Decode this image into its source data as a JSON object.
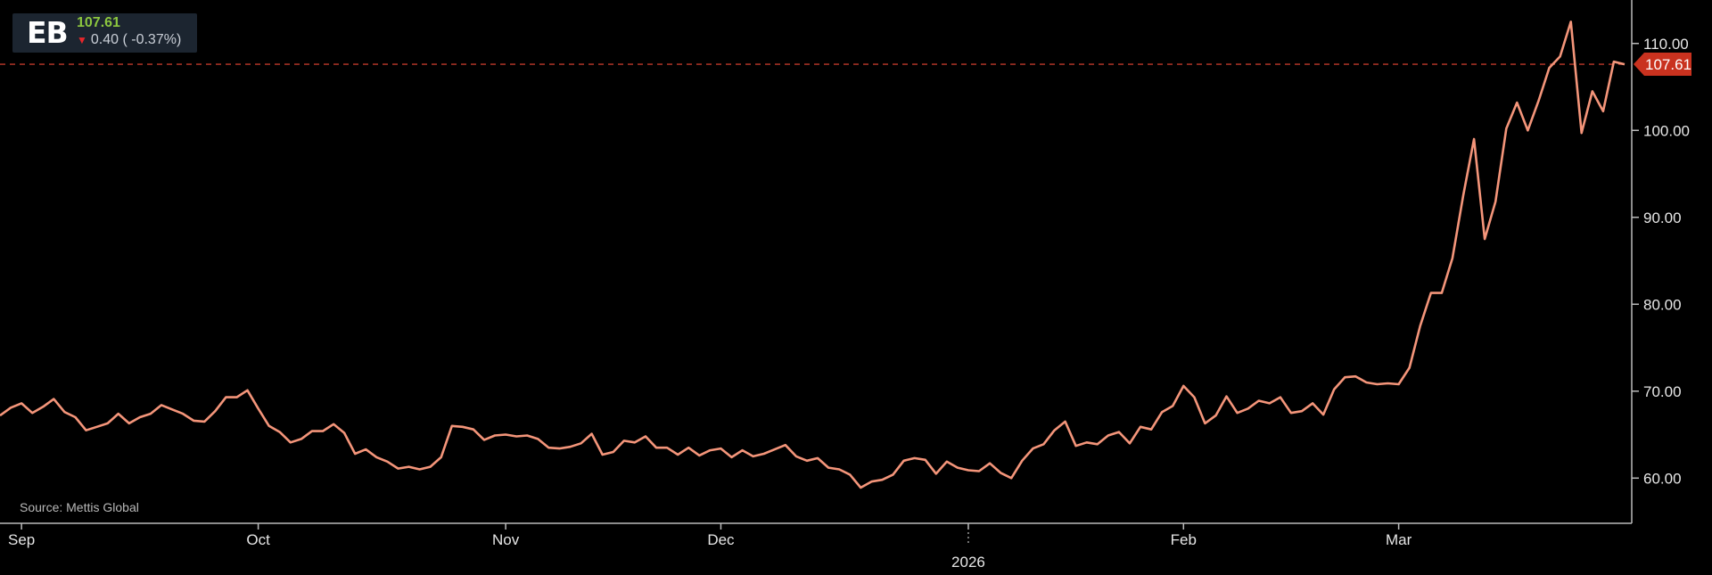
{
  "ticker": {
    "symbol": "EB",
    "price": "107.61",
    "change": "0.40",
    "change_pct": "( -0.37%)",
    "direction": "down",
    "arrow_icon": "down-arrow-icon"
  },
  "source": "Source: Mettis Global",
  "colors": {
    "background": "#000000",
    "line": "#f4957a",
    "last_price_line": "#c0392b",
    "last_price_tag": "#c9321f",
    "price_up": "#8cc63f",
    "price_down": "#e8262b"
  },
  "chart_data": {
    "type": "line",
    "title": "",
    "xlabel": "",
    "ylabel": "",
    "x_labels": [
      "Sep",
      "Oct",
      "Nov",
      "Dec",
      "2026",
      "Feb",
      "Mar"
    ],
    "x_label_index": [
      2,
      24,
      47,
      67,
      90,
      110,
      130
    ],
    "year_marker_label": "2026",
    "y_ticks": [
      "60.00",
      "70.00",
      "80.00",
      "90.00",
      "100.00",
      "110.00"
    ],
    "ylim": [
      54.8,
      115
    ],
    "y_axis_side": "right",
    "grid": false,
    "last_price": 107.61,
    "last_price_label": "107.61",
    "series": [
      {
        "values": [
          67.2,
          68.1,
          68.6,
          67.5,
          68.2,
          69.1,
          67.6,
          67.0,
          65.5,
          65.9,
          66.3,
          67.4,
          66.3,
          67.0,
          67.4,
          68.4,
          67.9,
          67.4,
          66.6,
          66.5,
          67.7,
          69.3,
          69.3,
          70.1,
          68.0,
          66.0,
          65.3,
          64.1,
          64.5,
          65.4,
          65.4,
          66.2,
          65.2,
          62.8,
          63.3,
          62.4,
          61.9,
          61.1,
          61.3,
          61.0,
          61.3,
          62.4,
          66.0,
          65.9,
          65.6,
          64.4,
          64.9,
          65.0,
          64.8,
          64.9,
          64.5,
          63.5,
          63.4,
          63.6,
          64.0,
          65.1,
          62.7,
          63.0,
          64.3,
          64.1,
          64.8,
          63.5,
          63.5,
          62.7,
          63.5,
          62.6,
          63.2,
          63.4,
          62.4,
          63.2,
          62.5,
          62.8,
          63.3,
          63.8,
          62.5,
          62.0,
          62.3,
          61.2,
          61.0,
          60.4,
          58.9,
          59.6,
          59.8,
          60.4,
          62.0,
          62.3,
          62.1,
          60.5,
          61.9,
          61.2,
          60.9,
          60.8,
          61.7,
          60.6,
          60.0,
          62.0,
          63.4,
          63.9,
          65.5,
          66.5,
          63.7,
          64.1,
          63.9,
          64.9,
          65.3,
          64.0,
          65.9,
          65.6,
          67.6,
          68.3,
          70.6,
          69.3,
          66.3,
          67.2,
          69.4,
          67.5,
          68.0,
          68.9,
          68.6,
          69.3,
          67.5,
          67.7,
          68.6,
          67.3,
          70.2,
          71.6,
          71.7,
          71.0,
          70.8,
          70.9,
          70.8,
          72.7,
          77.5,
          81.3,
          81.3,
          85.3,
          92.5,
          99.0,
          87.5,
          91.8,
          100.2,
          103.2,
          100.0,
          103.4,
          107.2,
          108.5,
          112.5,
          99.7,
          104.5,
          102.2,
          107.9,
          107.61
        ]
      }
    ]
  }
}
